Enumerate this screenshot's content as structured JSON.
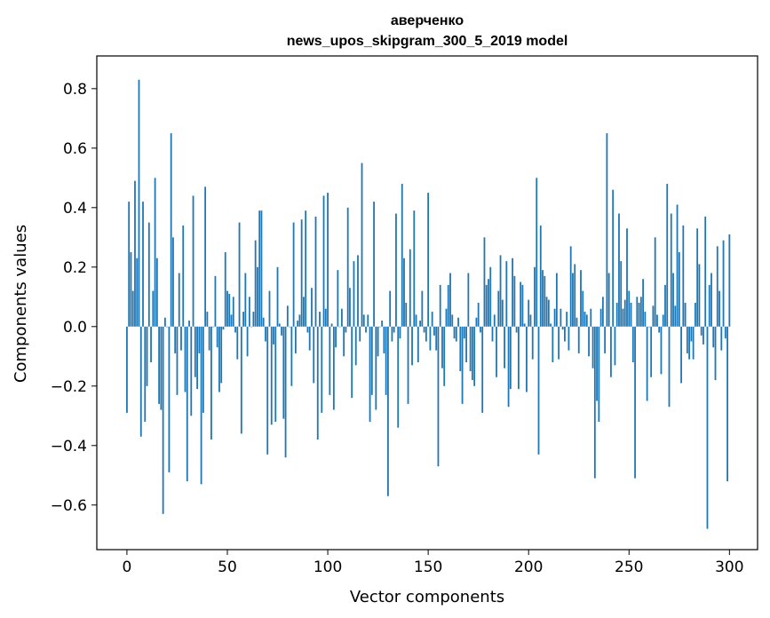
{
  "chart_data": {
    "type": "bar",
    "title_lines": [
      "аверченко",
      "news_upos_skipgram_300_5_2019 model"
    ],
    "xlabel": "Vector components",
    "ylabel": "Components values",
    "xlim": [
      -15,
      314
    ],
    "ylim": [
      -0.75,
      0.91
    ],
    "x_ticks": [
      0,
      50,
      100,
      150,
      200,
      250,
      300
    ],
    "y_ticks": [
      -0.6,
      -0.4,
      -0.2,
      0.0,
      0.2,
      0.4,
      0.6,
      0.8
    ],
    "y_tick_labels": [
      "−0.6",
      "−0.4",
      "−0.2",
      "0.0",
      "0.2",
      "0.4",
      "0.6",
      "0.8"
    ],
    "bar_color": "#1f77b4",
    "grid": false,
    "values": [
      -0.29,
      0.42,
      0.25,
      0.12,
      0.49,
      0.23,
      0.83,
      -0.37,
      0.42,
      -0.32,
      -0.2,
      0.35,
      -0.12,
      0.12,
      0.5,
      0.23,
      -0.26,
      -0.28,
      -0.63,
      0.03,
      0.0,
      -0.49,
      0.65,
      0.3,
      -0.09,
      -0.23,
      0.18,
      -0.08,
      0.34,
      -0.22,
      -0.52,
      0.02,
      -0.3,
      0.44,
      -0.17,
      -0.21,
      -0.09,
      -0.53,
      -0.29,
      0.47,
      0.05,
      -0.08,
      -0.38,
      0.0,
      0.17,
      -0.07,
      -0.22,
      -0.19,
      -0.01,
      0.25,
      0.12,
      0.11,
      0.04,
      0.1,
      -0.02,
      -0.11,
      0.35,
      -0.36,
      0.05,
      0.18,
      -0.1,
      0.1,
      0.0,
      0.05,
      0.29,
      0.2,
      0.39,
      0.39,
      0.03,
      -0.05,
      -0.43,
      0.12,
      -0.33,
      -0.06,
      -0.32,
      0.2,
      0.01,
      -0.03,
      -0.31,
      -0.44,
      0.07,
      0.0,
      -0.2,
      0.35,
      -0.09,
      0.02,
      0.04,
      0.36,
      0.1,
      0.39,
      -0.02,
      -0.08,
      0.13,
      -0.19,
      0.37,
      -0.38,
      0.05,
      -0.29,
      0.44,
      0.06,
      0.45,
      -0.23,
      0.01,
      -0.28,
      -0.07,
      0.19,
      0.0,
      0.06,
      -0.1,
      -0.02,
      0.4,
      0.13,
      -0.24,
      0.22,
      -0.13,
      0.24,
      -0.05,
      0.55,
      0.04,
      -0.02,
      0.04,
      -0.32,
      -0.23,
      0.42,
      -0.28,
      -0.1,
      0.0,
      0.02,
      -0.09,
      -0.23,
      -0.57,
      0.12,
      -0.05,
      -0.02,
      0.38,
      -0.34,
      -0.04,
      0.48,
      0.23,
      0.08,
      -0.26,
      0.26,
      -0.13,
      0.39,
      0.04,
      -0.12,
      0.02,
      0.12,
      -0.02,
      -0.05,
      0.45,
      -0.08,
      0.05,
      -0.03,
      -0.08,
      -0.47,
      0.14,
      -0.14,
      -0.2,
      0.06,
      0.14,
      0.18,
      0.04,
      -0.04,
      -0.05,
      0.03,
      -0.15,
      -0.26,
      -0.04,
      -0.12,
      0.18,
      -0.15,
      -0.18,
      -0.2,
      0.03,
      0.08,
      -0.02,
      -0.29,
      0.3,
      0.14,
      0.16,
      0.2,
      -0.05,
      0.04,
      -0.17,
      0.12,
      0.24,
      0.09,
      -0.14,
      0.22,
      -0.27,
      -0.21,
      0.23,
      0.17,
      -0.02,
      -0.21,
      0.15,
      0.14,
      0.01,
      -0.22,
      0.09,
      0.04,
      -0.11,
      0.2,
      0.5,
      -0.43,
      0.34,
      0.19,
      0.17,
      0.1,
      0.09,
      0.01,
      -0.12,
      0.06,
      0.18,
      -0.11,
      0.06,
      -0.01,
      -0.05,
      0.05,
      -0.08,
      0.27,
      0.18,
      0.21,
      0.03,
      -0.09,
      0.19,
      0.12,
      0.05,
      0.04,
      -0.1,
      0.06,
      -0.14,
      -0.51,
      -0.25,
      -0.32,
      0.06,
      0.1,
      -0.09,
      0.65,
      0.18,
      -0.17,
      0.46,
      -0.13,
      0.08,
      0.38,
      0.22,
      0.06,
      0.09,
      0.33,
      0.12,
      0.08,
      -0.12,
      -0.51,
      0.1,
      0.08,
      0.1,
      0.16,
      0.05,
      -0.25,
      0.0,
      -0.17,
      0.07,
      0.3,
      0.04,
      -0.02,
      -0.16,
      0.04,
      0.14,
      0.48,
      -0.27,
      0.38,
      0.18,
      0.07,
      0.41,
      0.25,
      -0.19,
      0.34,
      0.08,
      -0.09,
      -0.11,
      -0.05,
      -0.11,
      0.08,
      0.33,
      0.21,
      -0.03,
      -0.06,
      0.37,
      -0.68,
      0.14,
      0.18,
      -0.07,
      -0.18,
      0.27,
      0.12,
      -0.08,
      0.29,
      -0.04,
      -0.52,
      0.31
    ]
  }
}
